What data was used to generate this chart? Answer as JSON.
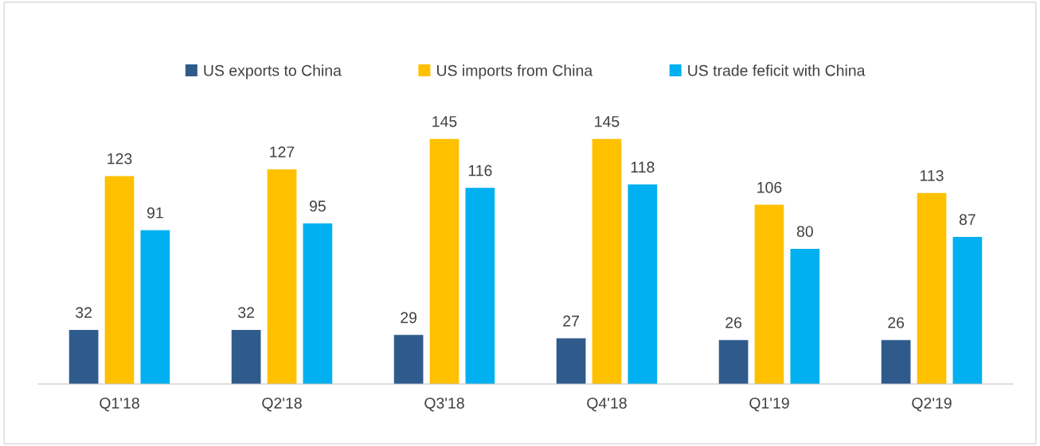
{
  "chart_data": {
    "type": "bar",
    "categories": [
      "Q1'18",
      "Q2'18",
      "Q3'18",
      "Q4'18",
      "Q1'19",
      "Q2'19"
    ],
    "series": [
      {
        "name": "US exports to China",
        "color": "#2f5b8c",
        "values": [
          32,
          32,
          29,
          27,
          26,
          26
        ]
      },
      {
        "name": "US imports from China",
        "color": "#ffc000",
        "values": [
          123,
          127,
          145,
          145,
          106,
          113
        ]
      },
      {
        "name": "US trade feficit with China",
        "color": "#00b0f0",
        "values": [
          91,
          95,
          116,
          118,
          80,
          87
        ]
      }
    ],
    "data_labels": true,
    "legend": "top",
    "grid": false
  }
}
